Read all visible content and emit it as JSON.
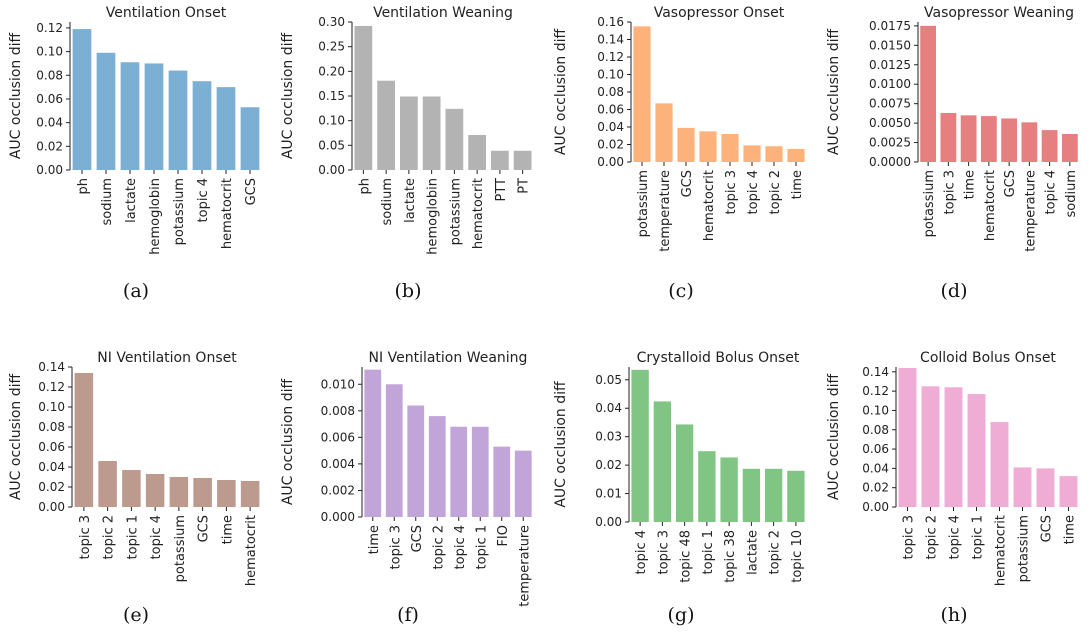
{
  "colors": {
    "ventilation_onset": "#7bafd4",
    "ventilation_weaning": "#b3b3b3",
    "vasopressor_onset": "#fdb27b",
    "vasopressor_weaning": "#e67f80",
    "ni_ventilation_onset": "#bd9a8e",
    "ni_ventilation_weaning": "#c2a5d8",
    "crystalloid_bolus_onset": "#80c583",
    "colloid_bolus_onset": "#efadd6"
  },
  "chart_data": [
    {
      "type": "bar",
      "title": "Ventilation Onset",
      "caption": "(a)",
      "ylabel": "AUC occlusion diff",
      "categories": [
        "ph",
        "sodium",
        "lactate",
        "hemoglobin",
        "potassium",
        "topic 4",
        "hematocrit",
        "GCS"
      ],
      "values": [
        0.119,
        0.099,
        0.091,
        0.09,
        0.084,
        0.075,
        0.07,
        0.053
      ],
      "ylim": [
        0,
        0.125
      ],
      "yticks": [
        "0.00",
        "0.02",
        "0.04",
        "0.06",
        "0.08",
        "0.10",
        "0.12"
      ],
      "color": "#7bafd4"
    },
    {
      "type": "bar",
      "title": "Ventilation Weaning",
      "caption": "(b)",
      "ylabel": "AUC occlusion diff",
      "categories": [
        "ph",
        "sodium",
        "lactate",
        "hemoglobin",
        "potassium",
        "hematocrit",
        "PTT",
        "PT"
      ],
      "values": [
        0.292,
        0.181,
        0.149,
        0.149,
        0.124,
        0.071,
        0.039,
        0.039
      ],
      "ylim": [
        0,
        0.3
      ],
      "yticks": [
        "0.00",
        "0.05",
        "0.10",
        "0.15",
        "0.20",
        "0.25",
        "0.30"
      ],
      "color": "#b3b3b3"
    },
    {
      "type": "bar",
      "title": "Vasopressor Onset",
      "caption": "(c)",
      "ylabel": "AUC occlusion diff",
      "categories": [
        "potassium",
        "temperature",
        "GCS",
        "hematocrit",
        "topic 3",
        "topic 4",
        "topic 2",
        "time"
      ],
      "values": [
        0.155,
        0.067,
        0.039,
        0.035,
        0.032,
        0.019,
        0.018,
        0.015
      ],
      "ylim": [
        0,
        0.16
      ],
      "yticks": [
        "0.00",
        "0.02",
        "0.04",
        "0.06",
        "0.08",
        "0.10",
        "0.12",
        "0.14",
        "0.16"
      ],
      "color": "#fdb27b"
    },
    {
      "type": "bar",
      "title": "Vasopressor Weaning",
      "caption": "(d)",
      "ylabel": "AUC occlusion diff",
      "categories": [
        "potassium",
        "topic 3",
        "time",
        "hematocrit",
        "GCS",
        "temperature",
        "topic 4",
        "sodium"
      ],
      "values": [
        0.0175,
        0.0063,
        0.006,
        0.0059,
        0.0056,
        0.0051,
        0.0041,
        0.0036
      ],
      "ylim": [
        0,
        0.018
      ],
      "yticks": [
        "0.0000",
        "0.0025",
        "0.0050",
        "0.0075",
        "0.0100",
        "0.0125",
        "0.0150",
        "0.0175"
      ],
      "color": "#e67f80"
    },
    {
      "type": "bar",
      "title": "NI Ventilation Onset",
      "caption": "(e)",
      "ylabel": "AUC occlusion diff",
      "categories": [
        "topic 3",
        "topic 2",
        "topic 1",
        "topic 4",
        "potassium",
        "GCS",
        "time",
        "hematocrit"
      ],
      "values": [
        0.134,
        0.046,
        0.037,
        0.033,
        0.03,
        0.029,
        0.027,
        0.026
      ],
      "ylim": [
        0,
        0.14
      ],
      "yticks": [
        "0.00",
        "0.02",
        "0.04",
        "0.06",
        "0.08",
        "0.10",
        "0.12",
        "0.14"
      ],
      "color": "#bd9a8e"
    },
    {
      "type": "bar",
      "title": "NI Ventilation Weaning",
      "caption": "(f)",
      "ylabel": "AUC occlusion diff",
      "categories": [
        "time",
        "topic 3",
        "GCS",
        "topic 2",
        "topic 4",
        "topic 1",
        "FIO",
        "temperature"
      ],
      "values": [
        0.0111,
        0.01,
        0.0084,
        0.0076,
        0.0068,
        0.0068,
        0.0053,
        0.005
      ],
      "ylim": [
        0,
        0.0113
      ],
      "yticks": [
        "0.000",
        "0.002",
        "0.004",
        "0.006",
        "0.008",
        "0.010"
      ],
      "color": "#c2a5d8"
    },
    {
      "type": "bar",
      "title": "Crystalloid Bolus Onset",
      "caption": "(g)",
      "ylabel": "AUC occlusion diff",
      "categories": [
        "topic 4",
        "topic 3",
        "topic 48",
        "topic 1",
        "topic 38",
        "lactate",
        "topic 2",
        "topic 10"
      ],
      "values": [
        0.0535,
        0.0424,
        0.0343,
        0.0249,
        0.0227,
        0.0187,
        0.0187,
        0.018
      ],
      "ylim": [
        0,
        0.0545
      ],
      "yticks": [
        "0.00",
        "0.01",
        "0.02",
        "0.03",
        "0.04",
        "0.05"
      ],
      "color": "#80c583"
    },
    {
      "type": "bar",
      "title": "Colloid Bolus Onset",
      "caption": "(h)",
      "ylabel": "AUC occlusion diff",
      "categories": [
        "topic 3",
        "topic 2",
        "topic 4",
        "topic 1",
        "hematocrit",
        "potassium",
        "GCS",
        "time"
      ],
      "values": [
        0.144,
        0.125,
        0.124,
        0.117,
        0.088,
        0.041,
        0.04,
        0.032
      ],
      "ylim": [
        0,
        0.145
      ],
      "yticks": [
        "0.00",
        "0.02",
        "0.04",
        "0.06",
        "0.08",
        "0.10",
        "0.12",
        "0.14"
      ],
      "color": "#efadd6"
    }
  ]
}
